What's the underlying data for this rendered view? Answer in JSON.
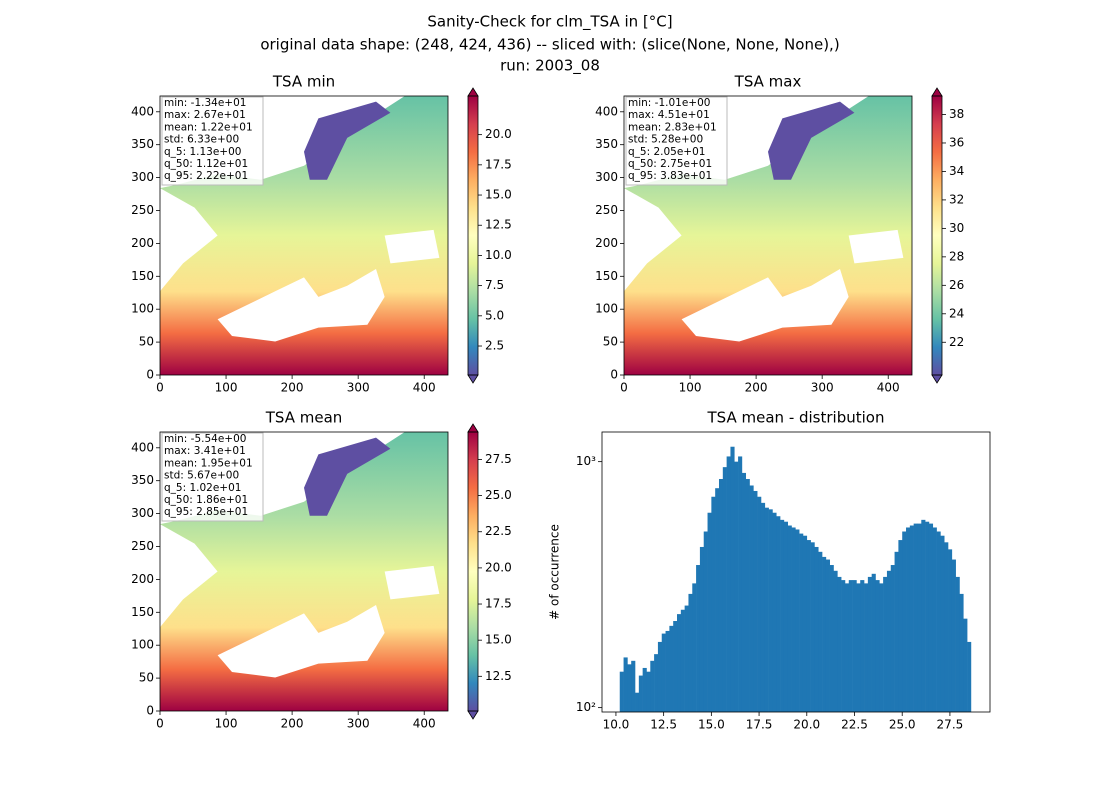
{
  "suptitle": [
    "Sanity-Check for clm_TSA in [°C]",
    "original data shape: (248, 424, 436) -- sliced with: (slice(None, None, None),)",
    "run: 2003_08"
  ],
  "chart_data": [
    {
      "type": "image",
      "title": "TSA min",
      "xlim": [
        0,
        436
      ],
      "ylim": [
        0,
        424
      ],
      "xticks": [
        0,
        100,
        200,
        300,
        400
      ],
      "yticks": [
        0,
        50,
        100,
        150,
        200,
        250,
        300,
        350,
        400
      ],
      "colorbar": {
        "cmap": "Spectral_r",
        "clim": [
          0.1,
          23.2
        ],
        "ticks": [
          2.5,
          {
            "value": 5,
            "label": "5.0"
          },
          7.5,
          {
            "value": 10,
            "label": "10.0"
          },
          12.5,
          {
            "value": 15,
            "label": "15.0"
          },
          17.5,
          {
            "value": 20,
            "label": "20.0"
          }
        ]
      },
      "annotation": [
        "min: -1.34e+01",
        "max: 2.67e+01",
        "mean: 1.22e+01",
        "std: 6.33e+00",
        "q_5: 1.13e+00",
        "q_50: 1.12e+01",
        "q_95: 2.22e+01"
      ]
    },
    {
      "type": "image",
      "title": "TSA max",
      "xlim": [
        0,
        436
      ],
      "ylim": [
        0,
        424
      ],
      "xticks": [
        0,
        100,
        200,
        300,
        400
      ],
      "yticks": [
        0,
        50,
        100,
        150,
        200,
        250,
        300,
        350,
        400
      ],
      "colorbar": {
        "cmap": "Spectral_r",
        "clim": [
          19.7,
          39.3
        ],
        "ticks": [
          22,
          24,
          26,
          28,
          30,
          32,
          34,
          36,
          38
        ]
      },
      "annotation": [
        "min: -1.01e+00",
        "max: 4.51e+01",
        "mean: 2.83e+01",
        "std: 5.28e+00",
        "q_5: 2.05e+01",
        "q_50: 2.75e+01",
        "q_95: 3.83e+01"
      ]
    },
    {
      "type": "image",
      "title": "TSA mean",
      "xlim": [
        0,
        436
      ],
      "ylim": [
        0,
        424
      ],
      "xticks": [
        0,
        100,
        200,
        300,
        400
      ],
      "yticks": [
        0,
        50,
        100,
        150,
        200,
        250,
        300,
        350,
        400
      ],
      "colorbar": {
        "cmap": "Spectral_r",
        "clim": [
          10.1,
          29.4
        ],
        "ticks": [
          12.5,
          {
            "value": 15,
            "label": "15.0"
          },
          17.5,
          {
            "value": 20,
            "label": "20.0"
          },
          22.5,
          {
            "value": 25,
            "label": "25.0"
          },
          27.5
        ]
      },
      "annotation": [
        "min: -5.54e+00",
        "max: 3.41e+01",
        "mean: 1.95e+01",
        "std: 5.67e+00",
        "q_5: 1.02e+01",
        "q_50: 1.86e+01",
        "q_95: 2.85e+01"
      ]
    },
    {
      "type": "histogram",
      "title": "TSA mean - distribution",
      "ylabel": "# of occurrence",
      "color": "#1f77b4",
      "log_y": true,
      "xlim": [
        9.27,
        29.6
      ],
      "ylim": [
        96,
        1320
      ],
      "xticks": [
        {
          "value": 10,
          "label": "10.0"
        },
        12.5,
        {
          "value": 15,
          "label": "15.0"
        },
        17.5,
        {
          "value": 20,
          "label": "20.0"
        },
        22.5,
        {
          "value": 25,
          "label": "25.0"
        },
        27.5
      ],
      "yticks": [
        {
          "value": 100,
          "label": "10²"
        },
        {
          "value": 1000,
          "label": "10³"
        }
      ],
      "bins": [
        10.2,
        10.4,
        10.6,
        10.8,
        11.0,
        11.2,
        11.4,
        11.6,
        11.8,
        12.0,
        12.2,
        12.4,
        12.6,
        12.8,
        13.0,
        13.2,
        13.4,
        13.6,
        13.8,
        14.0,
        14.2,
        14.4,
        14.6,
        14.8,
        15.0,
        15.2,
        15.4,
        15.6,
        15.8,
        16.0,
        16.2,
        16.4,
        16.6,
        16.8,
        17.0,
        17.2,
        17.4,
        17.6,
        17.8,
        18.0,
        18.2,
        18.4,
        18.6,
        18.8,
        19.0,
        19.2,
        19.4,
        19.6,
        19.8,
        20.0,
        20.2,
        20.4,
        20.6,
        20.8,
        21.0,
        21.2,
        21.4,
        21.6,
        21.8,
        22.0,
        22.2,
        22.4,
        22.6,
        22.8,
        23.0,
        23.2,
        23.4,
        23.6,
        23.8,
        24.0,
        24.2,
        24.4,
        24.6,
        24.8,
        25.0,
        25.2,
        25.4,
        25.6,
        25.8,
        26.0,
        26.2,
        26.4,
        26.6,
        26.8,
        27.0,
        27.2,
        27.4,
        27.6,
        27.8,
        28.0,
        28.2,
        28.4,
        28.6
      ],
      "values": [
        140,
        160,
        150,
        155,
        115,
        135,
        145,
        140,
        155,
        165,
        185,
        200,
        205,
        215,
        225,
        240,
        250,
        260,
        290,
        320,
        380,
        450,
        520,
        620,
        720,
        780,
        850,
        950,
        1050,
        1150,
        1000,
        1050,
        900,
        850,
        800,
        760,
        720,
        680,
        650,
        640,
        620,
        600,
        580,
        570,
        550,
        540,
        530,
        510,
        500,
        480,
        470,
        450,
        430,
        410,
        400,
        380,
        360,
        340,
        330,
        320,
        330,
        330,
        320,
        330,
        320,
        340,
        350,
        330,
        320,
        340,
        360,
        380,
        430,
        480,
        520,
        540,
        550,
        560,
        560,
        580,
        570,
        560,
        540,
        520,
        500,
        470,
        440,
        400,
        340,
        290,
        230,
        185
      ]
    }
  ]
}
